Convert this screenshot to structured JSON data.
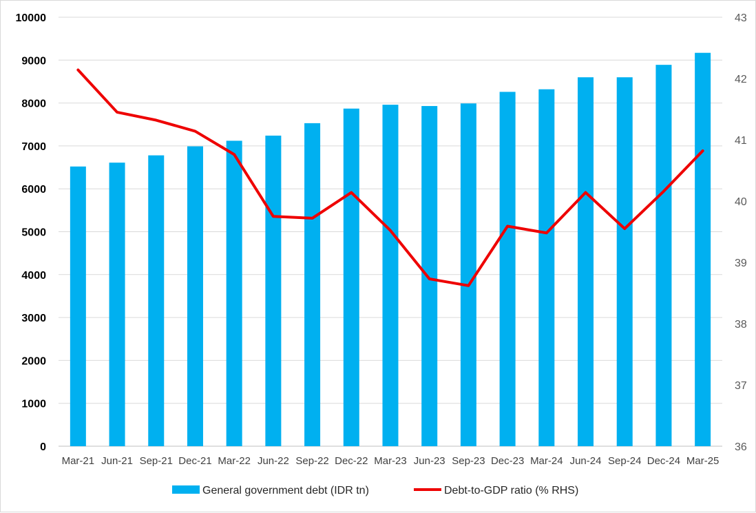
{
  "chart_data": {
    "type": "bar",
    "categories": [
      "Mar-21",
      "Jun-21",
      "Sep-21",
      "Dec-21",
      "Mar-22",
      "Jun-22",
      "Sep-22",
      "Dec-22",
      "Mar-23",
      "Jun-23",
      "Sep-23",
      "Dec-23",
      "Mar-24",
      "Jun-24",
      "Sep-24",
      "Dec-24",
      "Mar-25"
    ],
    "series": [
      {
        "name": "General government debt (IDR tn)",
        "type": "bar",
        "axis": "left",
        "color": "#00b0f0",
        "values": [
          6520,
          6610,
          6780,
          6990,
          7120,
          7240,
          7530,
          7870,
          7960,
          7930,
          7990,
          8260,
          8320,
          8600,
          8600,
          8890,
          9170
        ]
      },
      {
        "name": "Debt-to-GDP ratio (% RHS)",
        "type": "line",
        "axis": "right",
        "color": "#ee0000",
        "values": [
          42.14,
          41.45,
          41.32,
          41.14,
          40.76,
          39.75,
          39.72,
          40.14,
          39.52,
          38.73,
          38.62,
          39.59,
          39.48,
          40.14,
          39.55,
          40.16,
          40.82
        ]
      }
    ],
    "y_left": {
      "ylim": [
        0,
        10000
      ],
      "ticks": [
        "0",
        "1000",
        "2000",
        "3000",
        "4000",
        "5000",
        "6000",
        "7000",
        "8000",
        "9000",
        "10000"
      ]
    },
    "y_right": {
      "ylim": [
        36,
        43
      ],
      "ticks": [
        "36",
        "37",
        "38",
        "39",
        "40",
        "41",
        "42",
        "43"
      ]
    },
    "grid": true,
    "legend": "bottom"
  }
}
